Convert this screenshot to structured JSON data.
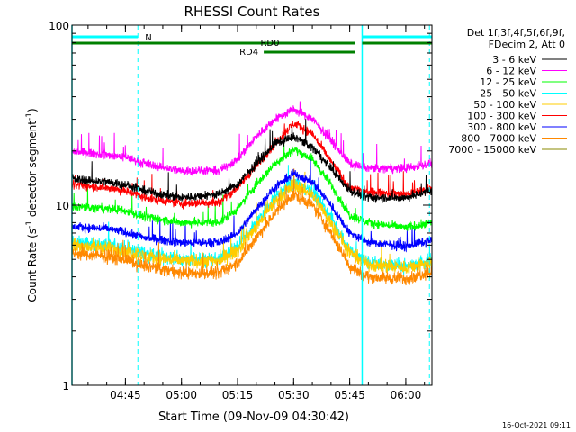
{
  "chart_data": {
    "type": "line",
    "title": "RHESSI Count Rates",
    "xlabel": "Start Time (09-Nov-09 04:30:42)",
    "ylabel_main": "Count Rate (s",
    "ylabel_sup1": "-1",
    "ylabel_mid": " detector segment",
    "ylabel_sup2": "-1",
    "ylabel_end": ")",
    "y_scale": "log",
    "ylim": [
      1,
      100
    ],
    "xlim": [
      "04:30:42",
      "06:07:00"
    ],
    "x_ticks": [
      "04:45",
      "05:00",
      "05:15",
      "05:30",
      "05:45",
      "06:00"
    ],
    "y_ticks": [
      "1",
      "10",
      "100"
    ],
    "legend_header": [
      "Det 1f,3f,4f,5f,6f,9f,",
      "FDecim 2, Att 0"
    ],
    "legend_placement": "right",
    "timestamp": "16-Oct-2021 09:11",
    "series": [
      {
        "name": "3 - 6 keV",
        "color": "#000000",
        "x": [
          "04:30",
          "04:40",
          "04:45",
          "04:50",
          "05:00",
          "05:10",
          "05:15",
          "05:20",
          "05:25",
          "05:30",
          "05:35",
          "05:40",
          "05:45",
          "05:50",
          "06:00",
          "06:07"
        ],
        "values": [
          14,
          13.5,
          13,
          12,
          11,
          11.5,
          13,
          17,
          22,
          24,
          21,
          16,
          12,
          11,
          11,
          12
        ]
      },
      {
        "name": "6 - 12 keV",
        "color": "#ff00ff",
        "x": [
          "04:30",
          "04:40",
          "04:45",
          "04:50",
          "05:00",
          "05:10",
          "05:15",
          "05:20",
          "05:25",
          "05:30",
          "05:35",
          "05:40",
          "05:45",
          "05:50",
          "06:00",
          "06:07"
        ],
        "values": [
          20,
          19,
          18.5,
          17,
          15.5,
          15.5,
          18,
          24,
          30,
          34,
          30,
          23,
          17,
          16,
          16,
          17
        ]
      },
      {
        "name": "12 - 25 keV",
        "color": "#00ff00",
        "x": [
          "04:30",
          "04:40",
          "04:45",
          "04:50",
          "05:00",
          "05:10",
          "05:15",
          "05:20",
          "05:25",
          "05:30",
          "05:35",
          "05:40",
          "05:45",
          "05:50",
          "06:00",
          "06:07"
        ],
        "values": [
          9.8,
          9.6,
          9.3,
          8.6,
          8,
          8,
          9.5,
          13,
          17,
          20.5,
          18,
          13,
          8.8,
          8,
          7.5,
          8
        ]
      },
      {
        "name": "25 - 50 keV",
        "color": "#00ffff",
        "x": [
          "04:30",
          "04:40",
          "04:45",
          "04:50",
          "05:00",
          "05:10",
          "05:15",
          "05:20",
          "05:25",
          "05:30",
          "05:35",
          "05:40",
          "05:45",
          "05:50",
          "06:00",
          "06:07"
        ],
        "values": [
          6.2,
          6,
          5.8,
          5.4,
          5,
          5,
          5.8,
          8,
          11,
          13.5,
          12,
          8.5,
          5.6,
          4.8,
          4.6,
          4.9
        ]
      },
      {
        "name": "50 - 100 keV",
        "color": "#ffcc00",
        "x": [
          "04:30",
          "04:40",
          "04:45",
          "04:50",
          "05:00",
          "05:10",
          "05:15",
          "05:20",
          "05:25",
          "05:30",
          "05:35",
          "05:40",
          "05:45",
          "05:50",
          "06:00",
          "06:07"
        ],
        "values": [
          6,
          5.8,
          5.6,
          5.2,
          4.9,
          4.9,
          5.6,
          7.6,
          10.5,
          13,
          11.5,
          8,
          5.4,
          4.7,
          4.5,
          4.8
        ]
      },
      {
        "name": "100 - 300 keV",
        "color": "#ff0000",
        "x": [
          "04:30",
          "04:40",
          "04:45",
          "04:50",
          "05:00",
          "05:10",
          "05:15",
          "05:20",
          "05:25",
          "05:30",
          "05:35",
          "05:40",
          "05:45",
          "05:50",
          "06:00",
          "06:07"
        ],
        "values": [
          13,
          12.5,
          12,
          11,
          10.2,
          10.4,
          12.5,
          16.5,
          22,
          28.5,
          25,
          17.5,
          12.5,
          11.8,
          11.5,
          12.5
        ]
      },
      {
        "name": "300 - 800 keV",
        "color": "#0000ff",
        "x": [
          "04:30",
          "04:40",
          "04:45",
          "04:50",
          "05:00",
          "05:10",
          "05:15",
          "05:20",
          "05:25",
          "05:30",
          "05:35",
          "05:40",
          "05:45",
          "05:50",
          "06:00",
          "06:07"
        ],
        "values": [
          7.6,
          7.4,
          7.1,
          6.6,
          6.2,
          6.2,
          7,
          9.5,
          12.5,
          15,
          13.5,
          10,
          7,
          6.2,
          5.9,
          6.4
        ]
      },
      {
        "name": "800 - 7000 keV",
        "color": "#ff8800",
        "x": [
          "04:30",
          "04:40",
          "04:45",
          "04:50",
          "05:00",
          "05:10",
          "05:15",
          "05:20",
          "05:25",
          "05:30",
          "05:35",
          "05:40",
          "05:45",
          "05:50",
          "06:00",
          "06:07"
        ],
        "values": [
          5.4,
          5.2,
          5,
          4.6,
          4.2,
          4.2,
          4.8,
          6.6,
          9,
          11.5,
          10,
          7,
          4.6,
          4,
          3.9,
          4.3
        ]
      },
      {
        "name": "7000 - 15000 keV",
        "color": "#888800",
        "x": [],
        "values": []
      }
    ],
    "attenuator_flags": [
      {
        "label": "N",
        "color": "#00ffff",
        "segments": [
          [
            "04:30:42",
            "04:48:20"
          ],
          [
            "05:48:20",
            "06:07:00"
          ]
        ]
      }
    ],
    "decimation_flags": [
      {
        "label": "RD0",
        "color": "#008000",
        "segments": [
          [
            "04:30:42",
            "05:46:30"
          ],
          [
            "05:48:20",
            "06:07:00"
          ]
        ]
      },
      {
        "label": "RD4",
        "color": "#008000",
        "segments": [
          [
            "05:22:00",
            "05:46:30"
          ]
        ]
      }
    ],
    "saa_night_markers": {
      "solid_color": "#00ffff",
      "solid_times": [
        "04:30:42",
        "05:48:20"
      ],
      "dashed_times": [
        "04:48:20",
        "06:06:20"
      ]
    }
  }
}
